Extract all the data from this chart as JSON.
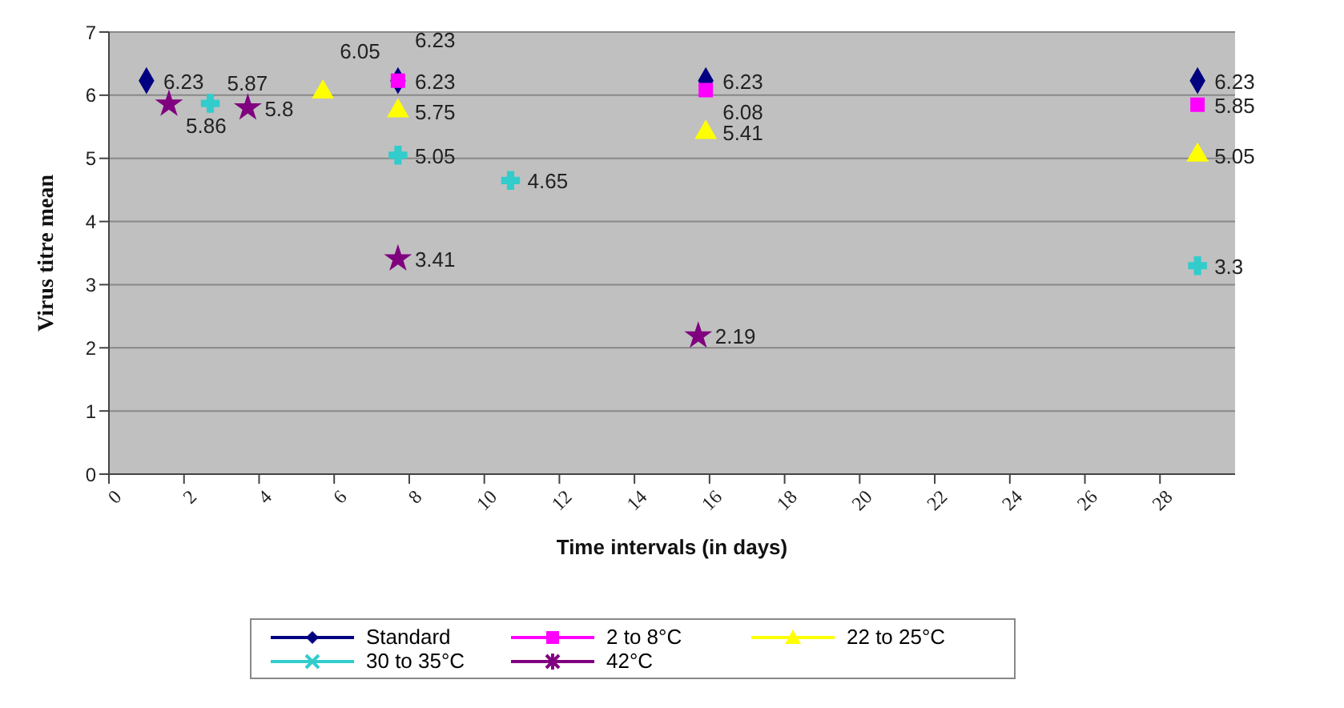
{
  "chart_data": {
    "type": "scatter",
    "xlabel": "Time intervals (in days)",
    "ylabel": "Virus titre mean",
    "xlim": [
      0,
      30
    ],
    "xticks": [
      0,
      2,
      4,
      6,
      8,
      10,
      12,
      14,
      16,
      18,
      20,
      22,
      24,
      26,
      28
    ],
    "ylim": [
      0,
      7
    ],
    "yticks": [
      0,
      1,
      2,
      3,
      4,
      5,
      6,
      7
    ],
    "grid": "y",
    "legend": "bottom",
    "data_labels": true,
    "series": [
      {
        "name": "Standard",
        "color": "#000080",
        "marker": "diamond",
        "x": [
          1,
          7.7,
          15.9,
          29
        ],
        "values": [
          6.23,
          6.23,
          6.23,
          6.23
        ]
      },
      {
        "name": "2 to 8°C",
        "color": "#ff00ff",
        "marker": "square",
        "x": [
          7.7,
          15.9,
          29
        ],
        "values": [
          6.23,
          6.08,
          5.85
        ]
      },
      {
        "name": "22 to 25°C",
        "color": "#ffff00",
        "marker": "triangle",
        "x": [
          5.7,
          7.7,
          15.9,
          29
        ],
        "values": [
          6.05,
          5.75,
          5.41,
          5.05
        ]
      },
      {
        "name": "30 to 35°C",
        "color": "#33cccc",
        "marker": "cross",
        "x": [
          2.7,
          7.7,
          10.7,
          29
        ],
        "values": [
          5.87,
          5.05,
          4.65,
          3.3
        ]
      },
      {
        "name": "42°C",
        "color": "#800080",
        "marker": "star",
        "x": [
          1.6,
          3.7,
          7.7,
          15.7
        ],
        "values": [
          5.86,
          5.8,
          3.41,
          2.19
        ]
      }
    ]
  }
}
